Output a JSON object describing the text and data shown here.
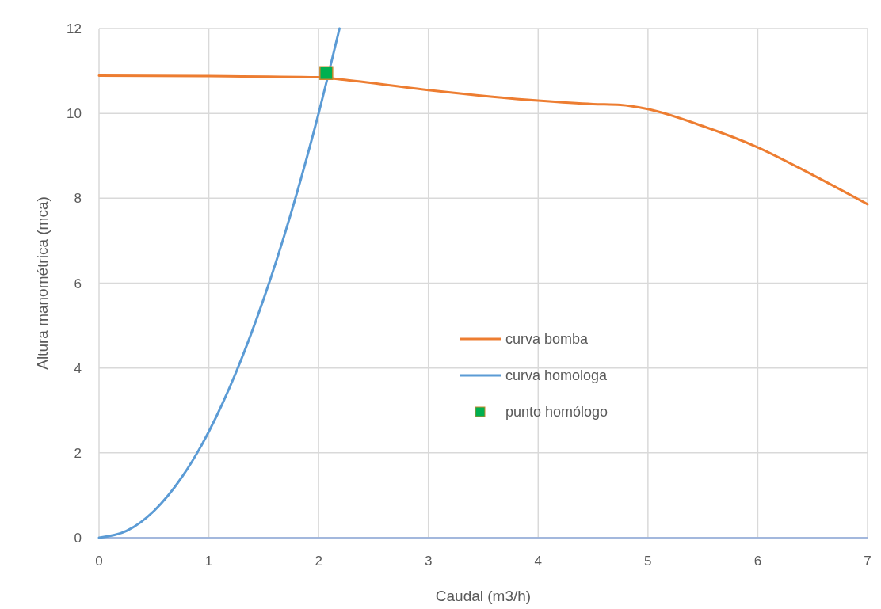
{
  "chart_data": {
    "type": "line",
    "xlabel": "Caudal (m3/h)",
    "ylabel": "Altura manométrica (mca)",
    "xlim": [
      0,
      7
    ],
    "ylim": [
      0,
      12
    ],
    "xticks": [
      0,
      1,
      2,
      3,
      4,
      5,
      6,
      7
    ],
    "yticks": [
      0,
      2,
      4,
      6,
      8,
      10,
      12
    ],
    "grid": true,
    "legend": "right",
    "series": [
      {
        "name": "curva bomba",
        "color": "#ed7d31",
        "marker": "none",
        "x": [
          0,
          1,
          2,
          2.2,
          3,
          4,
          4.5,
          4.75,
          5,
          5.5,
          6,
          6.5,
          7
        ],
        "values": [
          10.89,
          10.88,
          10.85,
          10.8,
          10.55,
          10.3,
          10.22,
          10.2,
          10.1,
          9.7,
          9.2,
          8.55,
          7.86
        ]
      },
      {
        "name": "curva homologa",
        "color": "#5b9bd5",
        "marker": "none",
        "x": [
          0,
          0.25,
          0.5,
          0.75,
          1,
          1.25,
          1.5,
          1.75,
          2,
          2.19
        ],
        "values": [
          0,
          0.16,
          0.63,
          1.41,
          2.5,
          3.91,
          5.63,
          7.66,
          10,
          12
        ]
      },
      {
        "name": "punto homólogo",
        "color": "#00b050",
        "type": "scatter",
        "marker": "square",
        "x": [
          2.07
        ],
        "values": [
          10.95
        ]
      }
    ]
  }
}
